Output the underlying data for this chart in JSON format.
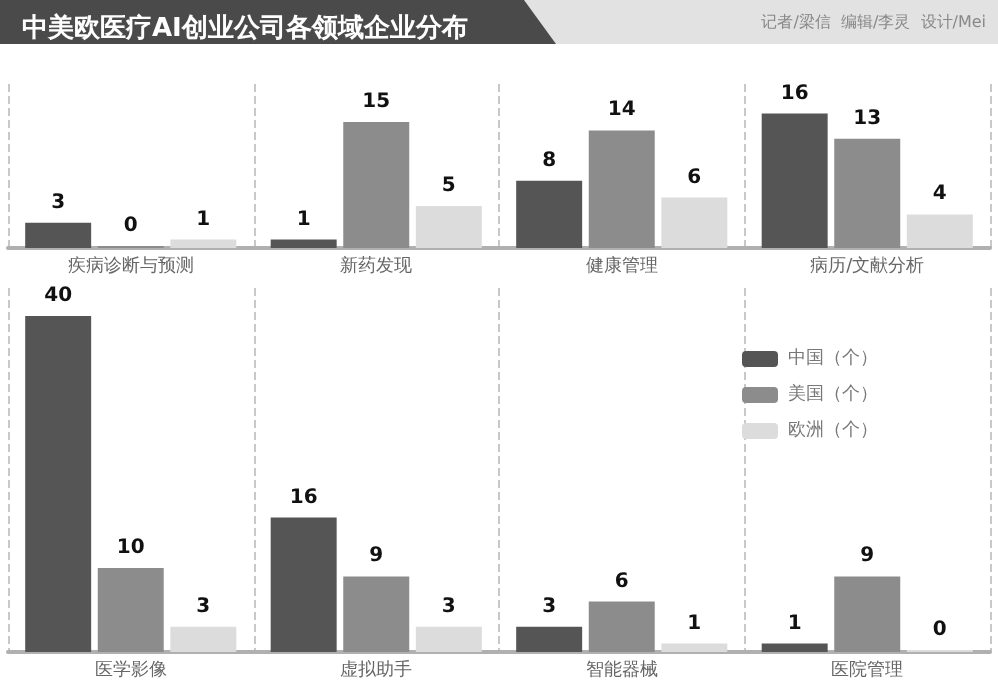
{
  "chart_data": [
    {
      "type": "bar",
      "title": "中美欧医疗AI创业公司各领域企业分布",
      "annotations": [
        "记者/梁信  编辑/李灵  设计/Mei"
      ],
      "categories": [
        "疾病诊断与预测",
        "新药发现",
        "健康管理",
        "病历/文献分析"
      ],
      "series": [
        {
          "color": "#555555",
          "values": [
            3,
            1,
            8,
            16
          ]
        },
        {
          "color": "#8c8c8c",
          "values": [
            0,
            15,
            14,
            13
          ]
        },
        {
          "color": "#dcdcdc",
          "values": [
            1,
            5,
            6,
            4
          ]
        }
      ],
      "data_labels": true,
      "grid": "x"
    },
    {
      "type": "bar",
      "categories": [
        "医学影像",
        "虚拟助手",
        "智能器械",
        "医院管理"
      ],
      "series": [
        {
          "name": "中国（个）",
          "color": "#555555",
          "values": [
            40,
            16,
            3,
            1
          ]
        },
        {
          "name": "美国（个）",
          "color": "#8c8c8c",
          "values": [
            10,
            9,
            6,
            9
          ]
        },
        {
          "name": "欧洲（个）",
          "color": "#dcdcdc",
          "values": [
            3,
            3,
            1,
            0
          ]
        }
      ],
      "data_labels": true,
      "grid": "x",
      "legend": "right"
    }
  ]
}
